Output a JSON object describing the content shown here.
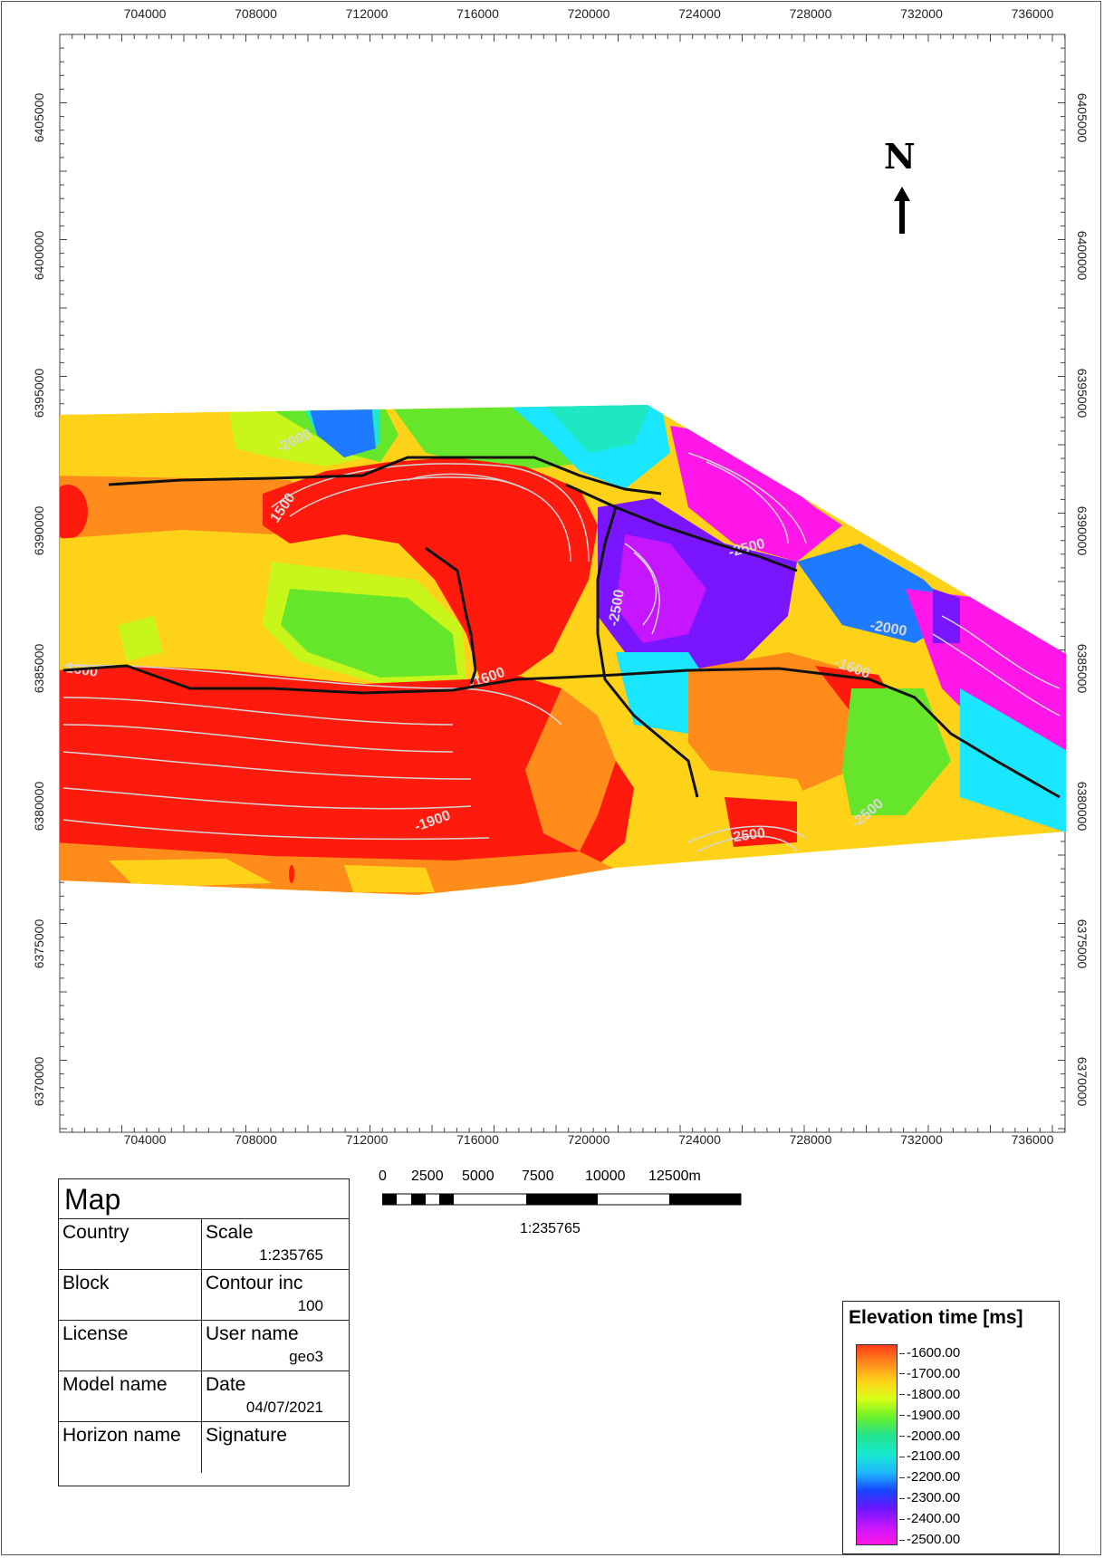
{
  "x_axis": {
    "ticks": [
      "704000",
      "708000",
      "712000",
      "716000",
      "720000",
      "724000",
      "728000",
      "732000",
      "736000"
    ]
  },
  "y_axis": {
    "ticks": [
      "6405000",
      "6400000",
      "6395000",
      "6390000",
      "6385000",
      "6380000",
      "6375000",
      "6370000"
    ]
  },
  "north": {
    "label": "N"
  },
  "contour_labels": [
    "-2000",
    "1500",
    "-2500",
    "-2500",
    "1600",
    "-1600",
    "-1600",
    "-1900",
    "-2500",
    "-2500",
    "-2000"
  ],
  "info_table": {
    "title": "Map",
    "rows": [
      {
        "left": "Country",
        "right": "Scale",
        "value": "1:235765"
      },
      {
        "left": "Block",
        "right": "Contour inc",
        "value": "100"
      },
      {
        "left": "License",
        "right": "User name",
        "value": "geo3"
      },
      {
        "left": "Model name",
        "right": "Date",
        "value": "04/07/2021"
      },
      {
        "left": "Horizon name",
        "right": "Signature",
        "value": ""
      }
    ]
  },
  "scale_bar": {
    "labels": [
      "0",
      "2500",
      "5000",
      "7500",
      "10000",
      "12500m"
    ],
    "ratio": "1:235765"
  },
  "legend": {
    "title": "Elevation time [ms]",
    "values": [
      "-1600.00",
      "-1700.00",
      "-1800.00",
      "-1900.00",
      "-2000.00",
      "-2100.00",
      "-2200.00",
      "-2300.00",
      "-2400.00",
      "-2500.00"
    ],
    "colors": [
      "#ff3a17",
      "#ff8a1c",
      "#ffd21a",
      "#d8ff16",
      "#6cf02a",
      "#24e58a",
      "#18e8d2",
      "#1fb8ff",
      "#1646ff",
      "#6a16ff",
      "#c516ff",
      "#ff16e4"
    ]
  },
  "surface_colors": {
    "red": "#ff1a0e",
    "orange": "#ff8c1a",
    "yellow": "#ffd21a",
    "lime": "#c8f51a",
    "green": "#66e62a",
    "aqua": "#1ee8c4",
    "cyan": "#1ae6ff",
    "blue": "#1e7bff",
    "purple": "#7a16ff",
    "magenta": "#ff16e8",
    "fault": "#111111"
  }
}
